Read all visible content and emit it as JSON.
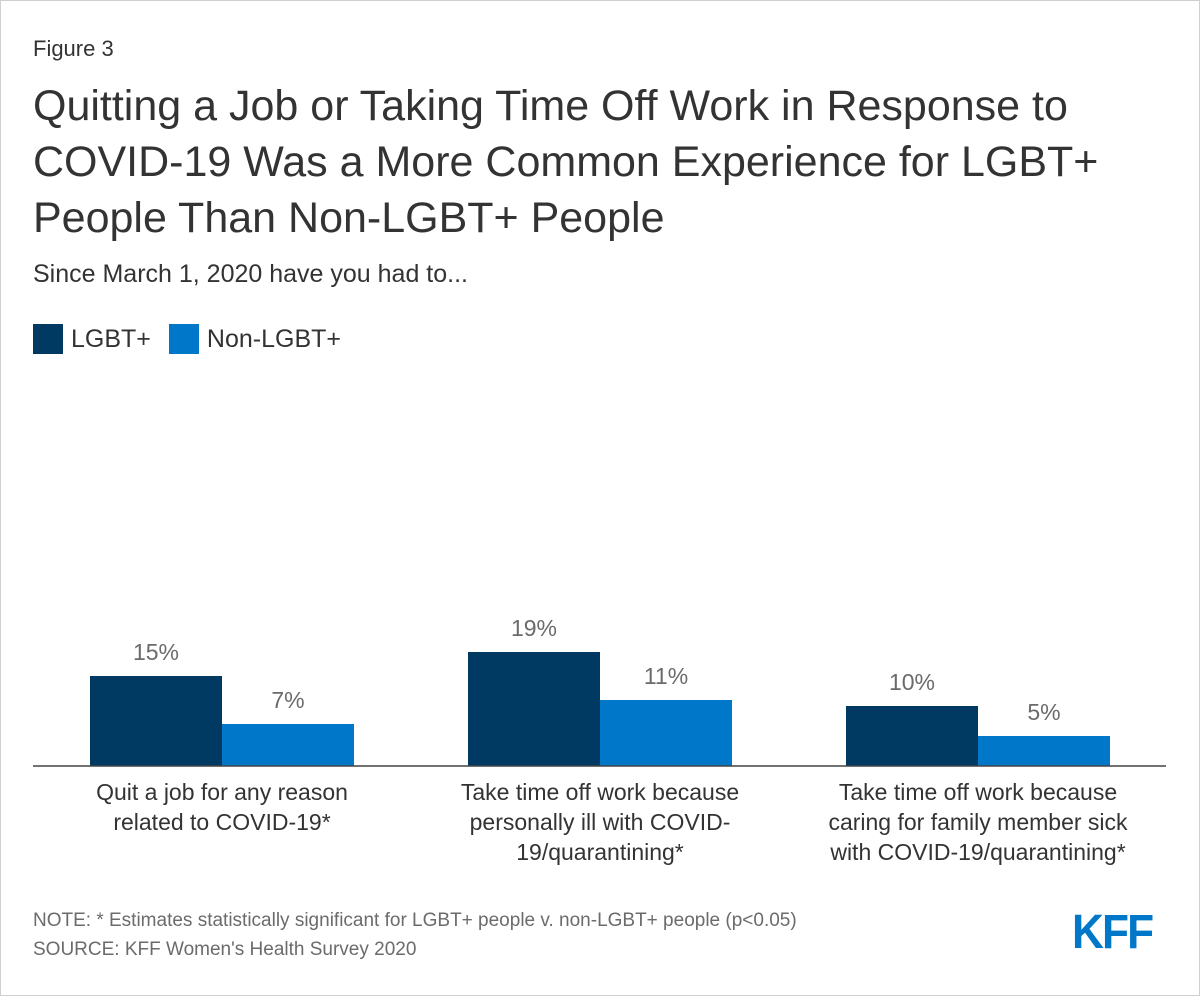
{
  "figure_label": "Figure 3",
  "title": "Quitting a Job or Taking Time Off Work in Response to COVID-19 Was a More Common Experience for LGBT+ People Than Non-LGBT+ People",
  "subtitle": "Since March 1, 2020 have you had to...",
  "colors": {
    "lgbt": "#003a63",
    "non_lgbt": "#0077c8",
    "label": "#6b6b6b",
    "axis": "#444444"
  },
  "chart_data": {
    "type": "bar",
    "categories": [
      [
        "Quit a job for any reason",
        "related to COVID-19*"
      ],
      [
        "Take time off work because",
        "personally ill with COVID-",
        "19/quarantining*"
      ],
      [
        "Take time off work because",
        "caring for family member sick",
        "with COVID-19/quarantining*"
      ]
    ],
    "series": [
      {
        "name": "LGBT+",
        "values": [
          15,
          19,
          10
        ],
        "labels": [
          "15%",
          "19%",
          "10%"
        ]
      },
      {
        "name": "Non-LGBT+",
        "values": [
          7,
          11,
          5
        ],
        "labels": [
          "7%",
          "11%",
          "5%"
        ]
      }
    ],
    "ylim": [
      0,
      100
    ],
    "xlabel": "",
    "ylabel": "",
    "legend": "top-left"
  },
  "note": "NOTE: * Estimates statistically significant for LGBT+ people v. non-LGBT+ people (p<0.05)",
  "source": "SOURCE: KFF Women's Health Survey 2020",
  "logo_text": "KFF"
}
